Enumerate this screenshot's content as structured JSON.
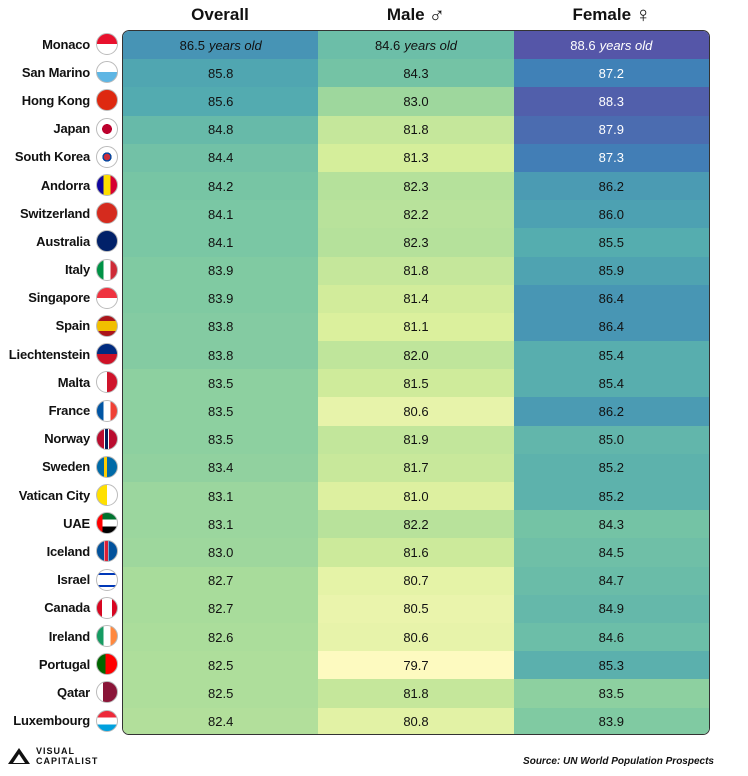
{
  "chart_data": {
    "type": "table",
    "columns": [
      {
        "key": "overall",
        "label": "Overall",
        "symbol": ""
      },
      {
        "key": "male",
        "label": "Male",
        "symbol": "♂"
      },
      {
        "key": "female",
        "label": "Female",
        "symbol": "♀"
      }
    ],
    "unit": "years old",
    "rows": [
      {
        "country": "Monaco",
        "overall": 86.5,
        "male": 84.6,
        "female": 88.6
      },
      {
        "country": "San Marino",
        "overall": 85.8,
        "male": 84.3,
        "female": 87.2
      },
      {
        "country": "Hong Kong",
        "overall": 85.6,
        "male": 83.0,
        "female": 88.3
      },
      {
        "country": "Japan",
        "overall": 84.8,
        "male": 81.8,
        "female": 87.9
      },
      {
        "country": "South Korea",
        "overall": 84.4,
        "male": 81.3,
        "female": 87.3
      },
      {
        "country": "Andorra",
        "overall": 84.2,
        "male": 82.3,
        "female": 86.2
      },
      {
        "country": "Switzerland",
        "overall": 84.1,
        "male": 82.2,
        "female": 86.0
      },
      {
        "country": "Australia",
        "overall": 84.1,
        "male": 82.3,
        "female": 85.5
      },
      {
        "country": "Italy",
        "overall": 83.9,
        "male": 81.8,
        "female": 85.9
      },
      {
        "country": "Singapore",
        "overall": 83.9,
        "male": 81.4,
        "female": 86.4
      },
      {
        "country": "Spain",
        "overall": 83.8,
        "male": 81.1,
        "female": 86.4
      },
      {
        "country": "Liechtenstein",
        "overall": 83.8,
        "male": 82.0,
        "female": 85.4
      },
      {
        "country": "Malta",
        "overall": 83.5,
        "male": 81.5,
        "female": 85.4
      },
      {
        "country": "France",
        "overall": 83.5,
        "male": 80.6,
        "female": 86.2
      },
      {
        "country": "Norway",
        "overall": 83.5,
        "male": 81.9,
        "female": 85.0
      },
      {
        "country": "Sweden",
        "overall": 83.4,
        "male": 81.7,
        "female": 85.2
      },
      {
        "country": "Vatican City",
        "overall": 83.1,
        "male": 81.0,
        "female": 85.2
      },
      {
        "country": "UAE",
        "overall": 83.1,
        "male": 82.2,
        "female": 84.3
      },
      {
        "country": "Iceland",
        "overall": 83.0,
        "male": 81.6,
        "female": 84.5
      },
      {
        "country": "Israel",
        "overall": 82.7,
        "male": 80.7,
        "female": 84.7
      },
      {
        "country": "Canada",
        "overall": 82.7,
        "male": 80.5,
        "female": 84.9
      },
      {
        "country": "Ireland",
        "overall": 82.6,
        "male": 80.6,
        "female": 84.6
      },
      {
        "country": "Portugal",
        "overall": 82.5,
        "male": 79.7,
        "female": 85.3
      },
      {
        "country": "Qatar",
        "overall": 82.5,
        "male": 81.8,
        "female": 83.5
      },
      {
        "country": "Luxembourg",
        "overall": 82.4,
        "male": 80.8,
        "female": 83.9
      }
    ],
    "color_scale": {
      "min": 79.7,
      "max": 88.6,
      "colors": [
        "#fdfac0",
        "#d9ef9b",
        "#a9dc9b",
        "#78c6a4",
        "#52aab0",
        "#3f84b8",
        "#5556a8"
      ]
    }
  },
  "flags": {
    "Monaco": "linear-gradient(#e8112d 50%, #ffffff 50%)",
    "San Marino": "linear-gradient(#ffffff 50%, #5eb6e4 50%)",
    "Hong Kong": "#de2910",
    "Japan": "radial-gradient(circle, #bc002d 34%, #ffffff 36%)",
    "South Korea": "radial-gradient(circle, #cd2e3a 22%, #0047a0 24%, #0047a0 32%, #ffffff 34%)",
    "Andorra": "linear-gradient(90deg, #10069f 33%, #fedf00 33%, #fedf00 67%, #d50032 67%)",
    "Switzerland": "#d52b1e",
    "Australia": "#012169",
    "Italy": "linear-gradient(90deg, #009246 33%, #ffffff 33%, #ffffff 67%, #ce2b37 67%)",
    "Singapore": "linear-gradient(#ef3340 50%, #ffffff 50%)",
    "Spain": "linear-gradient(#aa151b 25%, #f1bf00 25%, #f1bf00 75%, #aa151b 75%)",
    "Liechtenstein": "linear-gradient(#002b7f 50%, #ce1126 50%)",
    "Malta": "linear-gradient(90deg, #ffffff 50%, #cf142b 50%)",
    "France": "linear-gradient(90deg, #0055a4 33%, #ffffff 33%, #ffffff 67%, #ef4135 67%)",
    "Norway": "linear-gradient(90deg, #ba0c2f 34%, #ffffff 34%, #ffffff 40%, #00205b 40%, #00205b 54%, #ffffff 54%, #ffffff 60%, #ba0c2f 60%)",
    "Sweden": "linear-gradient(90deg, #006aa7 34%, #fecc00 34%, #fecc00 50%, #006aa7 50%)",
    "Vatican City": "linear-gradient(90deg, #ffe000 50%, #ffffff 50%)",
    "UAE": "linear-gradient(90deg, #ff0000 28%, transparent 28%), linear-gradient(#00732f 33%, #ffffff 33%, #ffffff 67%, #000000 67%)",
    "Iceland": "linear-gradient(90deg, #02529c 34%, #ffffff 34%, #ffffff 38%, #dc1e35 38%, #dc1e35 54%, #ffffff 54%, #ffffff 58%, #02529c 58%)",
    "Israel": "linear-gradient(#ffffff 15%, #0038b8 15%, #0038b8 25%, #ffffff 25%, #ffffff 75%, #0038b8 75%, #0038b8 85%, #ffffff 85%)",
    "Canada": "linear-gradient(90deg, #d80621 25%, #ffffff 25%, #ffffff 75%, #d80621 75%)",
    "Ireland": "linear-gradient(90deg, #169b62 33%, #ffffff 33%, #ffffff 67%, #ff883e 67%)",
    "Portugal": "linear-gradient(90deg, #006600 42%, #ff0000 42%)",
    "Qatar": "linear-gradient(90deg, #ffffff 30%, #8a1538 30%)",
    "Luxembourg": "linear-gradient(#ed2939 33%, #ffffff 33%, #ffffff 67%, #00a1de 67%)"
  },
  "logo": {
    "line1": "VISUAL",
    "line2": "CAPITALIST"
  },
  "source": "Source: UN World Population Prospects"
}
